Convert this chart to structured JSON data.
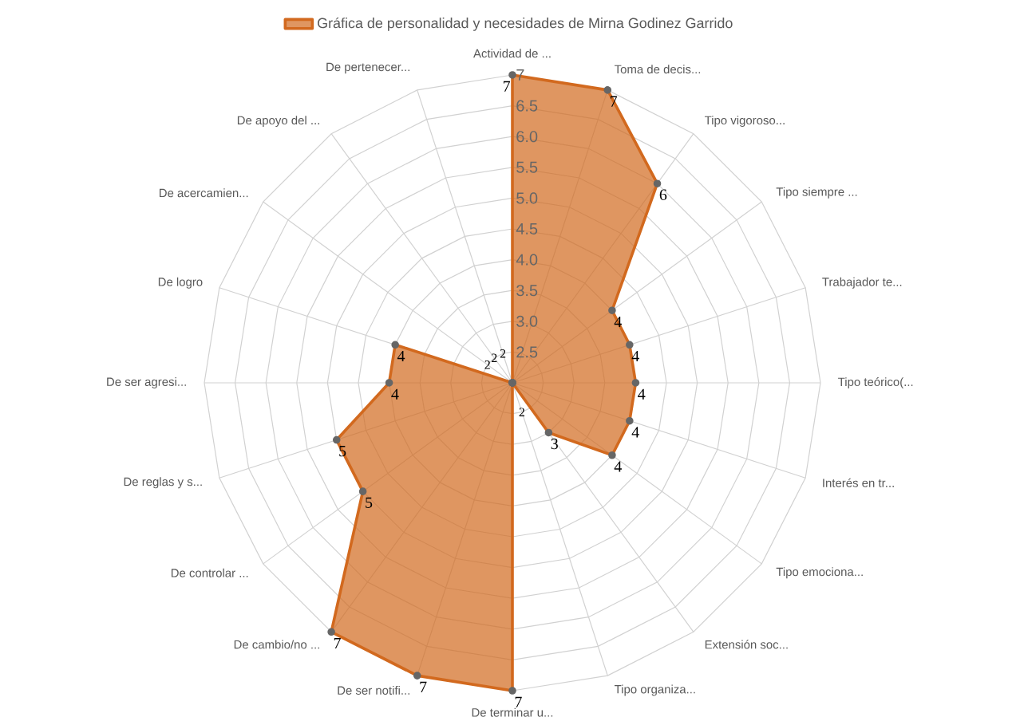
{
  "chart_data": {
    "type": "radar",
    "categories": [
      "Actividad de ...",
      "Toma de decis...",
      "Tipo vigoroso...",
      "Tipo siempre ...",
      "Trabajador te...",
      "Tipo teórico(...",
      "Interés en tr...",
      "Tipo emociona...",
      "Extensión soc...",
      "Tipo organiza...",
      "De terminar u...",
      "De ser notifi...",
      "De cambio/no ...",
      "De controlar ...",
      "De reglas y s...",
      "De ser agresi...",
      "De logro",
      "De acercamien...",
      "De apoyo del ...",
      "De pertenecer..."
    ],
    "series": [
      {
        "name": "Gráfica de personalidad y necesidades de Mirna Godinez Garrido",
        "color": "#d2691e",
        "values": [
          7,
          7,
          6,
          4,
          4,
          4,
          4,
          4,
          3,
          2,
          7,
          7,
          7,
          5,
          5,
          4,
          4,
          2,
          2,
          2
        ]
      }
    ],
    "ylim": [
      2,
      7
    ],
    "yticks": [
      2.5,
      {
        "value": 3,
        "label": "3.0"
      },
      3.5,
      {
        "value": 4,
        "label": "4.0"
      },
      4.5,
      {
        "value": 5,
        "label": "5.0"
      },
      5.5,
      {
        "value": 6,
        "label": "6.0"
      },
      6.5,
      7
    ],
    "data_labels": true,
    "grid": true,
    "legend": "top",
    "marker": "circle"
  }
}
